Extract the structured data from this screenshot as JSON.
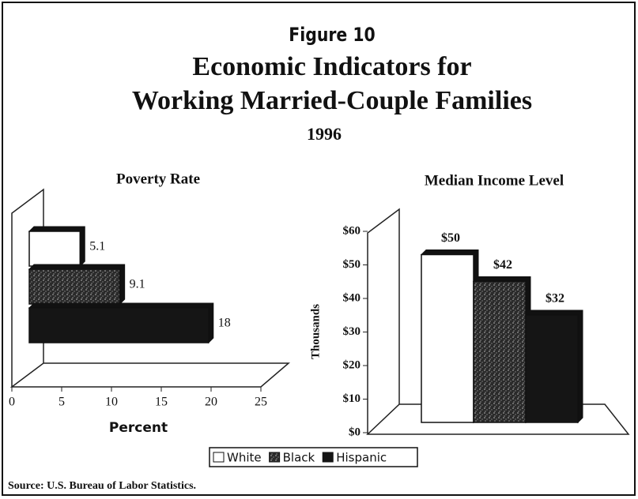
{
  "figure_label": "Figure 10",
  "title_lines": [
    "Economic Indicators for",
    "Working Married-Couple Families"
  ],
  "subtitle": "1996",
  "source": "Source: U.S. Bureau of Labor Statistics.",
  "legend": [
    {
      "name": "White",
      "color": "#ffffff"
    },
    {
      "name": "Black",
      "color": "#3a3a3a",
      "pattern": "speckle"
    },
    {
      "name": "Hispanic",
      "color": "#151515"
    }
  ],
  "chart_data": [
    {
      "type": "hbar",
      "title": "Poverty Rate",
      "xlabel": "Percent",
      "values": [
        5.1,
        9.1,
        18
      ],
      "xlim": [
        0,
        25
      ],
      "xticks": [
        0,
        5,
        10,
        15,
        20,
        25
      ]
    },
    {
      "type": "bar",
      "title": "Median Income Level",
      "ylabel": "Thousands",
      "values": [
        50,
        42,
        32
      ],
      "value_labels": [
        "$50",
        "$42",
        "$32"
      ],
      "ylim": [
        0,
        60
      ],
      "yticks": [
        {
          "value": 0,
          "label": "$0"
        },
        {
          "value": 10,
          "label": "$10"
        },
        {
          "value": 20,
          "label": "$20"
        },
        {
          "value": 30,
          "label": "$30"
        },
        {
          "value": 40,
          "label": "$40"
        },
        {
          "value": 50,
          "label": "$50"
        },
        {
          "value": 60,
          "label": "$60"
        }
      ]
    }
  ]
}
